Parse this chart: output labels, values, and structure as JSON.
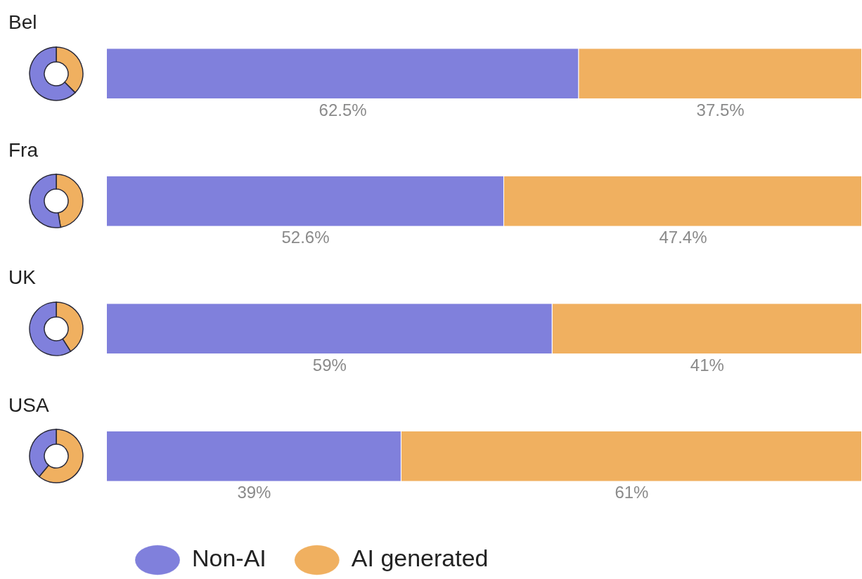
{
  "chart_data": {
    "type": "bar",
    "orientation": "horizontal",
    "stacked": true,
    "categories": [
      "Bel",
      "Fra",
      "UK",
      "USA"
    ],
    "xlim": [
      0,
      100
    ],
    "series": [
      {
        "name": "Non-AI",
        "color": "#8080dc",
        "values": [
          62.5,
          52.6,
          59,
          39
        ],
        "value_labels": [
          "62.5%",
          "52.6%",
          "59%",
          "39%"
        ]
      },
      {
        "name": "AI generated",
        "color": "#f0b060",
        "values": [
          37.5,
          47.4,
          41,
          61
        ],
        "value_labels": [
          "37.5%",
          "47.4%",
          "41%",
          "61%"
        ]
      }
    ],
    "legend": "bottom",
    "tick_labels": false
  }
}
